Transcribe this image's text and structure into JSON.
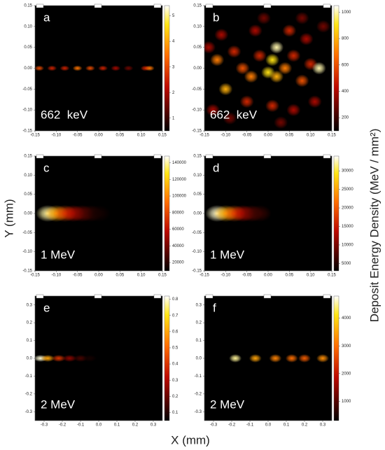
{
  "xlabel": "X (mm)",
  "ylabel": "Y (mm)",
  "colorbar_label": "Deposit Energy Density (MeV / mm²)",
  "chart_data": [
    {
      "type": "heatmap",
      "panel": "a",
      "annotation": "662  keV",
      "xlim": [
        -0.15,
        0.15
      ],
      "xticks": [
        -0.15,
        {
          "value": -0.1,
          "label": "-0.10"
        },
        -0.05,
        {
          "value": 0,
          "label": "0.00"
        },
        0.05,
        {
          "value": 0.1,
          "label": "0.10"
        },
        0.15
      ],
      "ylim": [
        -0.15,
        0.15
      ],
      "yticks": [
        -0.15,
        {
          "value": -0.1,
          "label": "-0.10"
        },
        -0.05,
        {
          "value": 0,
          "label": "0.00"
        },
        0.05,
        {
          "value": 0.1,
          "label": "0.10"
        },
        0.15
      ],
      "clim": [
        0.5,
        5.4
      ],
      "cticks": [
        1,
        2,
        3,
        4,
        5
      ],
      "hotspots": {
        "x": [
          -0.14,
          -0.11,
          -0.08,
          -0.05,
          -0.02,
          0.01,
          0.04,
          0.07,
          0.11,
          0.12
        ],
        "y": [
          0,
          0,
          0,
          0,
          0,
          0,
          0,
          0,
          0,
          0
        ],
        "values": [
          3,
          2.5,
          2.5,
          3.5,
          3,
          2.5,
          2,
          1.5,
          2.5,
          3.5
        ]
      }
    },
    {
      "type": "heatmap",
      "panel": "b",
      "annotation": "662  keV",
      "xlim": [
        -0.15,
        0.15
      ],
      "xticks": [
        -0.15,
        {
          "value": -0.1,
          "label": "-0.10"
        },
        -0.05,
        {
          "value": 0,
          "label": "0.00"
        },
        0.05,
        {
          "value": 0.1,
          "label": "0.10"
        },
        0.15
      ],
      "ylim": [
        -0.15,
        0.15
      ],
      "yticks": [
        -0.15,
        {
          "value": -0.1,
          "label": "-0.10"
        },
        -0.05,
        {
          "value": 0,
          "label": "0.00"
        },
        0.05,
        {
          "value": 0.1,
          "label": "0.10"
        },
        0.15
      ],
      "clim": [
        100,
        1050
      ],
      "cticks": [
        200,
        400,
        600,
        800,
        1000
      ],
      "hotspots": {
        "x": [
          -0.12,
          -0.1,
          -0.08,
          -0.06,
          -0.04,
          -0.02,
          0,
          0.01,
          0.02,
          0.02,
          0.04,
          0.06,
          0.08,
          0.1,
          0.12,
          -0.11,
          -0.03,
          0.05,
          0.09,
          -0.13,
          -0.05,
          0.01,
          0.06,
          0.11,
          -0.01,
          0.08,
          -0.09,
          0.03,
          0.13,
          -0.14
        ],
        "y": [
          0.02,
          -0.05,
          0.04,
          0,
          -0.02,
          0.03,
          -0.01,
          0.02,
          0.05,
          -0.02,
          0,
          0.03,
          -0.03,
          0.01,
          0,
          0.08,
          0.09,
          0.09,
          0.07,
          -0.1,
          -0.08,
          -0.09,
          -0.1,
          -0.08,
          0.12,
          0.12,
          -0.12,
          -0.13,
          0.1,
          0.05
        ],
        "values": [
          700,
          800,
          500,
          600,
          700,
          500,
          900,
          900,
          1000,
          800,
          700,
          500,
          600,
          500,
          1000,
          400,
          400,
          500,
          400,
          400,
          500,
          500,
          400,
          400,
          300,
          300,
          300,
          300,
          300,
          400
        ]
      }
    },
    {
      "type": "heatmap",
      "panel": "c",
      "annotation": "1 MeV",
      "xlim": [
        -0.15,
        0.15
      ],
      "xticks": [
        -0.15,
        {
          "value": -0.1,
          "label": "-0.10"
        },
        -0.05,
        {
          "value": 0,
          "label": "0.00"
        },
        0.05,
        {
          "value": 0.1,
          "label": "0.10"
        },
        0.15
      ],
      "ylim": [
        -0.15,
        0.15
      ],
      "yticks": [
        -0.15,
        {
          "value": -0.1,
          "label": "-0.10"
        },
        -0.05,
        {
          "value": 0,
          "label": "0.00"
        },
        0.05,
        {
          "value": 0.1,
          "label": "0.10"
        },
        0.15
      ],
      "clim": [
        10000,
        148000
      ],
      "cticks": [
        20000,
        40000,
        60000,
        80000,
        100000,
        120000,
        140000
      ],
      "hotspots": {
        "x": [
          -0.12,
          -0.1,
          -0.08,
          -0.06,
          -0.04,
          -0.02,
          0
        ],
        "y": [
          0,
          0,
          0,
          0,
          0,
          0,
          0
        ],
        "values": [
          140000,
          110000,
          80000,
          60000,
          40000,
          25000,
          15000
        ]
      }
    },
    {
      "type": "heatmap",
      "panel": "d",
      "annotation": "1 MeV",
      "xlim": [
        -0.15,
        0.15
      ],
      "xticks": [
        -0.15,
        {
          "value": -0.1,
          "label": "-0.10"
        },
        -0.05,
        {
          "value": 0,
          "label": "0.00"
        },
        0.05,
        {
          "value": 0.1,
          "label": "0.10"
        },
        0.15
      ],
      "ylim": [
        -0.15,
        0.15
      ],
      "yticks": [
        -0.15,
        {
          "value": -0.1,
          "label": "-0.10"
        },
        -0.05,
        {
          "value": 0,
          "label": "0.00"
        },
        0.05,
        {
          "value": 0.1,
          "label": "0.10"
        },
        0.15
      ],
      "clim": [
        3000,
        34000
      ],
      "cticks": [
        5000,
        10000,
        15000,
        20000,
        25000,
        30000
      ],
      "hotspots": {
        "x": [
          -0.12,
          -0.1,
          -0.08,
          -0.06,
          -0.04,
          -0.02
        ],
        "y": [
          0,
          0,
          0,
          0,
          0,
          0
        ],
        "values": [
          33000,
          26000,
          20000,
          14000,
          9000,
          6000
        ]
      }
    },
    {
      "type": "heatmap",
      "panel": "e",
      "annotation": "2 MeV",
      "xlim": [
        -0.35,
        0.35
      ],
      "xticks": [
        -0.3,
        -0.2,
        -0.1,
        {
          "value": 0,
          "label": "0.0"
        },
        0.1,
        0.2,
        0.3
      ],
      "ylim": [
        -0.35,
        0.35
      ],
      "yticks": [
        -0.3,
        -0.2,
        -0.1,
        {
          "value": 0,
          "label": "0.0"
        },
        0.1,
        0.2,
        0.3
      ],
      "clim": [
        0.05,
        0.82
      ],
      "cticks": [
        0.1,
        0.2,
        0.3,
        0.4,
        0.5,
        0.6,
        0.7,
        0.8
      ],
      "hotspots": {
        "x": [
          -0.32,
          -0.28,
          -0.22,
          -0.16,
          -0.1,
          -0.05
        ],
        "y": [
          0,
          0,
          0,
          0,
          0,
          0
        ],
        "values": [
          0.8,
          0.6,
          0.4,
          0.25,
          0.15,
          0.08
        ]
      }
    },
    {
      "type": "heatmap",
      "panel": "f",
      "annotation": "2 MeV",
      "xlim": [
        -0.35,
        0.35
      ],
      "xticks": [
        -0.3,
        -0.2,
        -0.1,
        {
          "value": 0,
          "label": "0.0"
        },
        0.1,
        0.2,
        0.3
      ],
      "ylim": [
        -0.35,
        0.35
      ],
      "yticks": [
        -0.3,
        -0.2,
        -0.1,
        {
          "value": 0,
          "label": "0.0"
        },
        0.1,
        0.2,
        0.3
      ],
      "clim": [
        300,
        4800
      ],
      "cticks": [
        1000,
        2000,
        3000,
        4000
      ],
      "hotspots": {
        "x": [
          -0.18,
          -0.07,
          0.04,
          0.13,
          0.2,
          0.3
        ],
        "y": [
          0,
          0,
          0,
          0,
          0,
          0
        ],
        "values": [
          4500,
          3500,
          3200,
          3000,
          2800,
          3300
        ]
      }
    }
  ]
}
